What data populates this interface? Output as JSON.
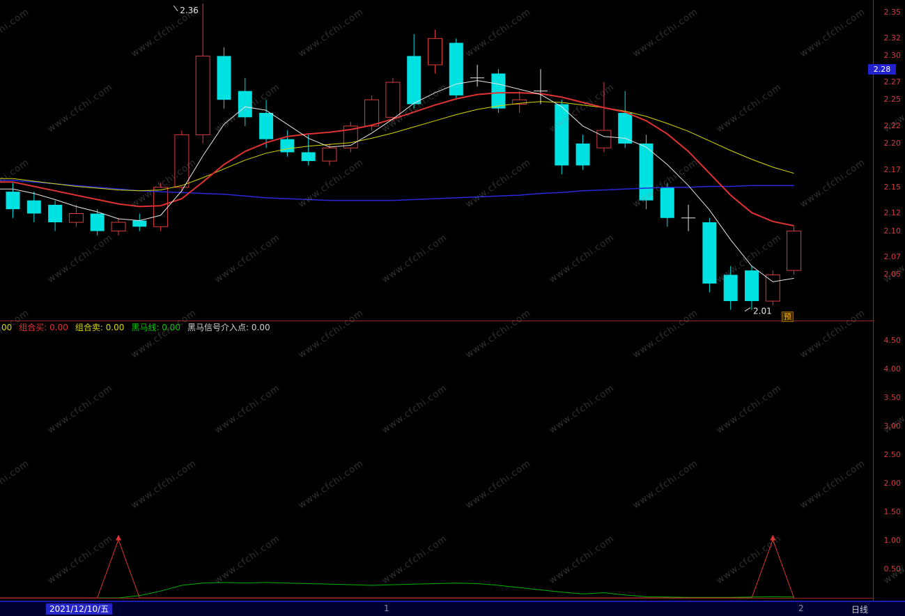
{
  "watermark": "www.cfchi.com",
  "top_chart": {
    "price_badge": "2.28",
    "alert_tag": "预",
    "high_label": "2.36",
    "low_label": "2.01",
    "y_axis": [
      "2.35",
      "2.32",
      "2.30",
      "2.27",
      "2.25",
      "2.22",
      "2.20",
      "2.17",
      "2.15",
      "2.12",
      "2.10",
      "2.07",
      "2.05"
    ]
  },
  "indicator_header": {
    "prefix": "00",
    "items": [
      {
        "label": "组合买:",
        "value": "0.00",
        "color": "#e03232"
      },
      {
        "label": "组合卖:",
        "value": "0.00",
        "color": "#d8d800"
      },
      {
        "label": "黑马线:",
        "value": "0.00",
        "color": "#00c800"
      },
      {
        "label": "黑马信号介入点:",
        "value": "0.00",
        "color": "#d0d0d0"
      }
    ]
  },
  "bottom_chart": {
    "y_axis": [
      "4.50",
      "4.00",
      "3.50",
      "3.00",
      "2.50",
      "2.00",
      "1.50",
      "1.00",
      "0.50"
    ]
  },
  "status_bar": {
    "date": "2021/12/10/五",
    "markers": [
      "1",
      "2"
    ],
    "period": "日线"
  },
  "chart_data": [
    {
      "type": "candlestick",
      "description": "daily K-line main panel with moving averages",
      "up_color": "#dc3c3c",
      "down_color": "#00e1e1",
      "doji_color": "#e8e8e8",
      "ylim": [
        2.0,
        2.37
      ],
      "candles_ohlc": [
        [
          2.145,
          2.155,
          2.115,
          2.125
        ],
        [
          2.135,
          2.145,
          2.11,
          2.12
        ],
        [
          2.13,
          2.135,
          2.1,
          2.11
        ],
        [
          2.11,
          2.13,
          2.105,
          2.12
        ],
        [
          2.12,
          2.125,
          2.095,
          2.1
        ],
        [
          2.1,
          2.115,
          2.095,
          2.11
        ],
        [
          2.112,
          2.12,
          2.1,
          2.105
        ],
        [
          2.105,
          2.155,
          2.1,
          2.15
        ],
        [
          2.15,
          2.215,
          2.145,
          2.21
        ],
        [
          2.21,
          2.36,
          2.2,
          2.3
        ],
        [
          2.3,
          2.31,
          2.24,
          2.25
        ],
        [
          2.26,
          2.275,
          2.22,
          2.23
        ],
        [
          2.235,
          2.25,
          2.195,
          2.205
        ],
        [
          2.205,
          2.215,
          2.185,
          2.19
        ],
        [
          2.19,
          2.21,
          2.175,
          2.18
        ],
        [
          2.18,
          2.2,
          2.175,
          2.195
        ],
        [
          2.195,
          2.225,
          2.19,
          2.22
        ],
        [
          2.22,
          2.255,
          2.215,
          2.25
        ],
        [
          2.23,
          2.275,
          2.225,
          2.27
        ],
        [
          2.3,
          2.325,
          2.24,
          2.245
        ],
        [
          2.29,
          2.33,
          2.28,
          2.32
        ],
        [
          2.315,
          2.32,
          2.25,
          2.255
        ],
        [
          2.275,
          2.29,
          2.265,
          2.275
        ],
        [
          2.28,
          2.285,
          2.235,
          2.24
        ],
        [
          2.245,
          2.26,
          2.235,
          2.25
        ],
        [
          2.26,
          2.285,
          2.245,
          2.26
        ],
        [
          2.245,
          2.25,
          2.165,
          2.175
        ],
        [
          2.2,
          2.21,
          2.17,
          2.175
        ],
        [
          2.195,
          2.27,
          2.19,
          2.215
        ],
        [
          2.235,
          2.26,
          2.195,
          2.2
        ],
        [
          2.2,
          2.21,
          2.125,
          2.135
        ],
        [
          2.15,
          2.155,
          2.105,
          2.115
        ],
        [
          2.115,
          2.13,
          2.1,
          2.115
        ],
        [
          2.11,
          2.115,
          2.03,
          2.04
        ],
        [
          2.05,
          2.06,
          2.01,
          2.02
        ],
        [
          2.055,
          2.06,
          2.01,
          2.02
        ],
        [
          2.02,
          2.055,
          2.015,
          2.05
        ],
        [
          2.055,
          2.105,
          2.05,
          2.1
        ]
      ],
      "series": [
        {
          "name": "blue-ma",
          "color": "#2828dc",
          "width": 1.5,
          "values": [
            2.158,
            2.156,
            2.154,
            2.152,
            2.15,
            2.148,
            2.146,
            2.145,
            2.144,
            2.143,
            2.142,
            2.14,
            2.138,
            2.137,
            2.136,
            2.135,
            2.135,
            2.135,
            2.135,
            2.136,
            2.137,
            2.138,
            2.139,
            2.14,
            2.141,
            2.143,
            2.144,
            2.146,
            2.147,
            2.148,
            2.149,
            2.15,
            2.15,
            2.151,
            2.151,
            2.152,
            2.152,
            2.152
          ]
        },
        {
          "name": "yellow-ma",
          "color": "#d8d800",
          "width": 1,
          "values": [
            2.16,
            2.157,
            2.154,
            2.151,
            2.149,
            2.147,
            2.146,
            2.147,
            2.152,
            2.161,
            2.171,
            2.181,
            2.189,
            2.194,
            2.197,
            2.199,
            2.201,
            2.206,
            2.212,
            2.219,
            2.226,
            2.233,
            2.239,
            2.243,
            2.246,
            2.248,
            2.247,
            2.244,
            2.241,
            2.237,
            2.231,
            2.223,
            2.214,
            2.203,
            2.192,
            2.182,
            2.173,
            2.166
          ]
        },
        {
          "name": "red-ma",
          "color": "#e03232",
          "width": 2,
          "values": [
            2.156,
            2.151,
            2.146,
            2.141,
            2.136,
            2.131,
            2.128,
            2.129,
            2.137,
            2.156,
            2.176,
            2.191,
            2.201,
            2.208,
            2.211,
            2.213,
            2.216,
            2.221,
            2.228,
            2.236,
            2.244,
            2.251,
            2.256,
            2.258,
            2.258,
            2.257,
            2.253,
            2.247,
            2.241,
            2.236,
            2.226,
            2.211,
            2.191,
            2.166,
            2.141,
            2.121,
            2.111,
            2.106
          ]
        },
        {
          "name": "white-ma",
          "color": "#e8e8e8",
          "width": 1,
          "values": [
            2.148,
            2.143,
            2.136,
            2.128,
            2.122,
            2.114,
            2.112,
            2.118,
            2.146,
            2.186,
            2.222,
            2.242,
            2.238,
            2.222,
            2.206,
            2.196,
            2.198,
            2.212,
            2.228,
            2.246,
            2.258,
            2.268,
            2.272,
            2.268,
            2.262,
            2.256,
            2.242,
            2.22,
            2.208,
            2.206,
            2.196,
            2.176,
            2.152,
            2.124,
            2.09,
            2.06,
            2.042,
            2.046
          ]
        }
      ],
      "annotations": [
        {
          "text": "2.36",
          "index": 9,
          "price": 2.36,
          "pos": "high"
        },
        {
          "text": "2.01",
          "index": 35,
          "price": 2.01,
          "pos": "low"
        }
      ]
    },
    {
      "type": "line",
      "description": "sub indicator panel: red signal spikes and green horse line",
      "ylim": [
        0,
        4.75
      ],
      "series": [
        {
          "name": "red-signal",
          "color": "#dc3232",
          "width": 1,
          "values": [
            0,
            0,
            0,
            0,
            0,
            1.02,
            0,
            0,
            0,
            0,
            0,
            0,
            0,
            0,
            0,
            0,
            0,
            0,
            0,
            0,
            0,
            0,
            0,
            0,
            0,
            0,
            0,
            0,
            0,
            0,
            0,
            0,
            0,
            0,
            0,
            0,
            1.02,
            0
          ]
        },
        {
          "name": "green-horse-line",
          "color": "#00b400",
          "width": 1,
          "values": [
            0,
            0,
            0,
            0,
            0,
            0,
            0.04,
            0.12,
            0.22,
            0.26,
            0.27,
            0.26,
            0.27,
            0.26,
            0.25,
            0.24,
            0.23,
            0.22,
            0.23,
            0.24,
            0.25,
            0.26,
            0.25,
            0.22,
            0.18,
            0.14,
            0.1,
            0.07,
            0.09,
            0.05,
            0.02,
            0.015,
            0.01,
            0.01,
            0.01,
            0.015,
            0.02,
            0.015
          ]
        }
      ]
    }
  ]
}
